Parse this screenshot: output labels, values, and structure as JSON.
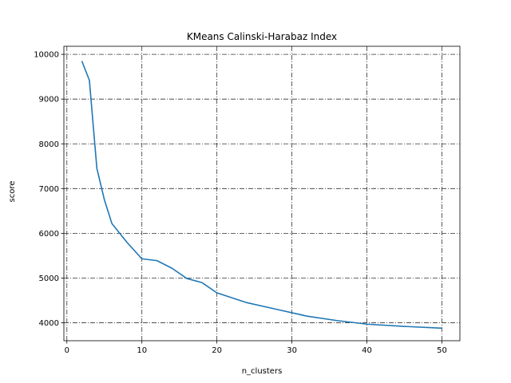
{
  "chart_data": {
    "type": "line",
    "title": "KMeans Calinski-Harabaz Index",
    "xlabel": "n_clusters",
    "ylabel": "score",
    "xlim": [
      -0.4,
      52.4
    ],
    "ylim": [
      3600,
      10180
    ],
    "xticks": [
      0,
      10,
      20,
      30,
      40,
      50
    ],
    "yticks": [
      4000,
      5000,
      6000,
      7000,
      8000,
      9000,
      10000
    ],
    "grid": true,
    "series": [
      {
        "color": "#1f77b4",
        "x": [
          2,
          3,
          4,
          5,
          6,
          8,
          10,
          12,
          14,
          16,
          18,
          20,
          24,
          28,
          32,
          36,
          40,
          45,
          50
        ],
        "y": [
          9850,
          9420,
          7450,
          6750,
          6220,
          5800,
          5430,
          5390,
          5220,
          4990,
          4900,
          4670,
          4450,
          4300,
          4150,
          4050,
          3970,
          3920,
          3880
        ]
      }
    ]
  }
}
